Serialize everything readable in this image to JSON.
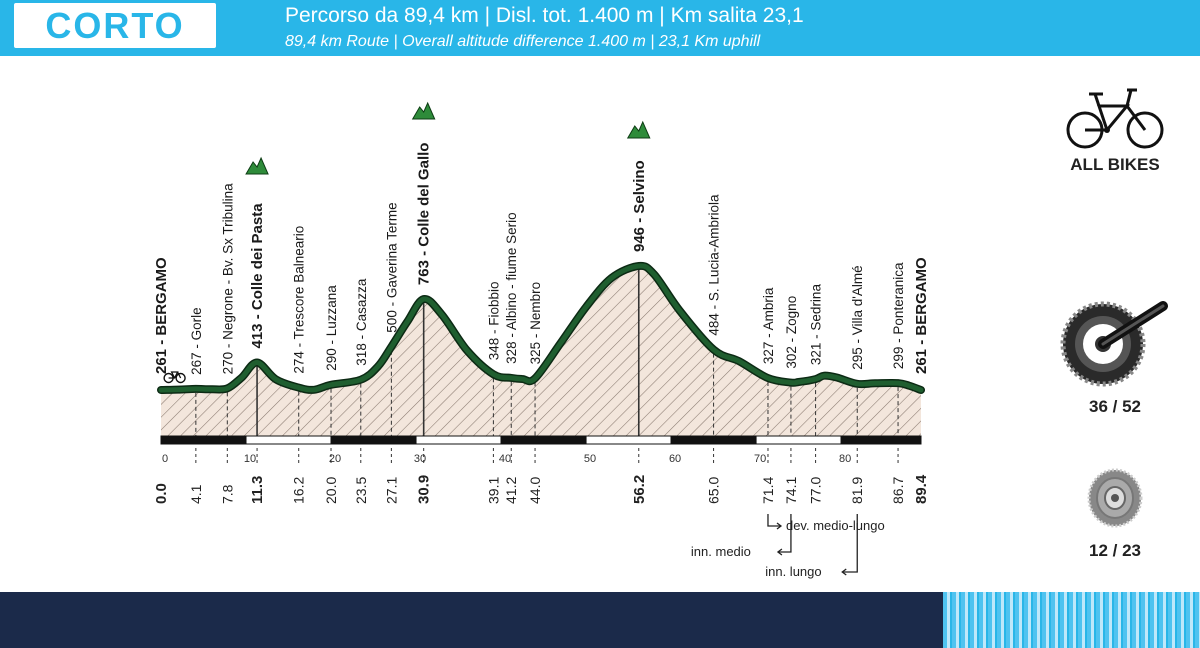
{
  "header": {
    "title": "CORTO",
    "subtitle_it": "Percorso da 89,4 km | Disl. tot. 1.400 m | Km salita 23,1",
    "subtitle_en": "89,4 km Route | Overall altitude difference 1.400 m | 23,1 Km uphill"
  },
  "side": {
    "bike_label": "ALL BIKES",
    "chainring_label": "36 / 52",
    "cassette_label": "12 / 23",
    "bike_icon": "bicycle-icon",
    "chainring_icon": "crankset-icon",
    "cassette_icon": "cassette-icon"
  },
  "colors": {
    "header": "#29b6e8",
    "profile_line": "#1f5e2f",
    "footer": "#1b2a4a",
    "summit": "#2e8b3a"
  },
  "chart_data": {
    "type": "area",
    "title": "",
    "xlabel": "",
    "ylabel": "",
    "xlim": [
      0,
      89.4
    ],
    "x_ticks": [
      "0",
      "10",
      "20",
      "30",
      "40",
      "50",
      "60",
      "70",
      "80"
    ],
    "profile": [
      [
        0,
        261
      ],
      [
        2,
        263
      ],
      [
        4.1,
        267
      ],
      [
        6,
        265
      ],
      [
        7.8,
        270
      ],
      [
        9.5,
        330
      ],
      [
        11.3,
        413
      ],
      [
        13.5,
        320
      ],
      [
        16.2,
        274
      ],
      [
        18,
        262
      ],
      [
        20,
        290
      ],
      [
        23.5,
        318
      ],
      [
        25.5,
        390
      ],
      [
        27.1,
        500
      ],
      [
        29,
        640
      ],
      [
        30.9,
        763
      ],
      [
        33,
        680
      ],
      [
        36,
        480
      ],
      [
        39.1,
        348
      ],
      [
        41.2,
        328
      ],
      [
        42.5,
        322
      ],
      [
        44,
        325
      ],
      [
        47,
        520
      ],
      [
        50,
        720
      ],
      [
        53,
        880
      ],
      [
        56.2,
        946
      ],
      [
        58,
        900
      ],
      [
        61,
        700
      ],
      [
        65,
        484
      ],
      [
        68,
        420
      ],
      [
        71.4,
        327
      ],
      [
        74.1,
        302
      ],
      [
        75,
        305
      ],
      [
        77,
        321
      ],
      [
        78,
        340
      ],
      [
        79.5,
        330
      ],
      [
        81.9,
        295
      ],
      [
        84,
        298
      ],
      [
        86.7,
        299
      ],
      [
        88,
        285
      ],
      [
        89.4,
        261
      ]
    ],
    "waypoints": [
      {
        "km": "0.0",
        "x": 0,
        "label": "261 - BERGAMO",
        "major": true
      },
      {
        "km": "4.1",
        "x": 4.1,
        "label": "267 - Gorle",
        "major": false
      },
      {
        "km": "7.8",
        "x": 7.8,
        "label": "270 - Negrone - Bv. Sx Tribulina",
        "major": false
      },
      {
        "km": "11.3",
        "x": 11.3,
        "label": "413 - Colle dei Pasta",
        "major": true
      },
      {
        "km": "16.2",
        "x": 16.2,
        "label": "274 - Trescore Balneario",
        "major": false
      },
      {
        "km": "20.0",
        "x": 20.0,
        "label": "290 - Luzzana",
        "major": false
      },
      {
        "km": "23.5",
        "x": 23.5,
        "label": "318 - Casazza",
        "major": false
      },
      {
        "km": "27.1",
        "x": 27.1,
        "label": "500 - Gaverina Terme",
        "major": false
      },
      {
        "km": "30.9",
        "x": 30.9,
        "label": "763 - Colle del Gallo",
        "major": true
      },
      {
        "km": "39.1",
        "x": 39.1,
        "label": "348 - Fiobbio",
        "major": false
      },
      {
        "km": "41.2",
        "x": 41.2,
        "label": "328 - Albino - fiume Serio",
        "major": false
      },
      {
        "km": "44.0",
        "x": 44.0,
        "label": "325 - Nembro",
        "major": false
      },
      {
        "km": "56.2",
        "x": 56.2,
        "label": "946 - Selvino",
        "major": true
      },
      {
        "km": "65.0",
        "x": 65.0,
        "label": "484 - S. Lucia-Ambriola",
        "major": false
      },
      {
        "km": "71.4",
        "x": 71.4,
        "label": "327 - Ambria",
        "major": false
      },
      {
        "km": "74.1",
        "x": 74.1,
        "label": "302 - Zogno",
        "major": false
      },
      {
        "km": "77.0",
        "x": 77.0,
        "label": "321 - Sedrina",
        "major": false
      },
      {
        "km": "81.9",
        "x": 81.9,
        "label": "295 - Villa d'Almé",
        "major": false
      },
      {
        "km": "86.7",
        "x": 86.7,
        "label": "299 - Ponteranica",
        "major": false
      },
      {
        "km": "89.4",
        "x": 89.4,
        "label": "261 - BERGAMO",
        "major": true
      }
    ],
    "summits": [
      11.3,
      30.9,
      56.2
    ],
    "annotations": {
      "dev": "dev. medio-lungo",
      "inn_medio": "inn. medio",
      "inn_lungo": "inn. lungo"
    }
  }
}
